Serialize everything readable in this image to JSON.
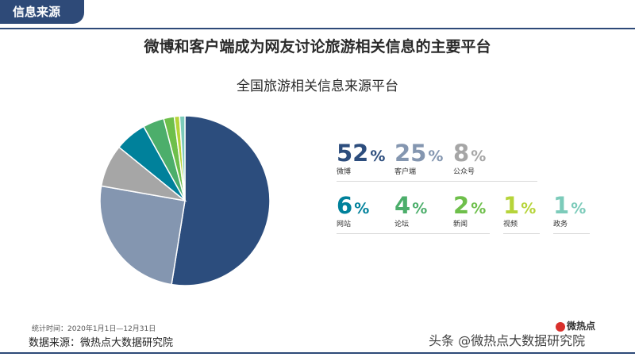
{
  "header": {
    "section_label": "信息来源"
  },
  "title": "微博和客户端成为网友讨论旅游相关信息的主要平台",
  "chart_data": {
    "type": "pie",
    "title": "全国旅游相关信息来源平台",
    "slices": [
      {
        "label": "微博",
        "value": 52,
        "color": "#2c4d7d"
      },
      {
        "label": "客户端",
        "value": 25,
        "color": "#8496b0"
      },
      {
        "label": "公众号",
        "value": 8,
        "color": "#a6a6a6"
      },
      {
        "label": "网站",
        "value": 6,
        "color": "#00819b"
      },
      {
        "label": "论坛",
        "value": 4,
        "color": "#4cae6b"
      },
      {
        "label": "新闻",
        "value": 2,
        "color": "#6ebf4b"
      },
      {
        "label": "视频",
        "value": 1,
        "color": "#b6d43a"
      },
      {
        "label": "政务",
        "value": 1,
        "color": "#7ccbba"
      }
    ],
    "percent_suffix": "%"
  },
  "footer": {
    "period": "统计时间：2020年1月1日—12月31日",
    "source": "数据来源：微热点大数据研究院"
  },
  "watermark": {
    "text": "头条 @微热点大数据研究院",
    "logo_text": "微热点"
  }
}
